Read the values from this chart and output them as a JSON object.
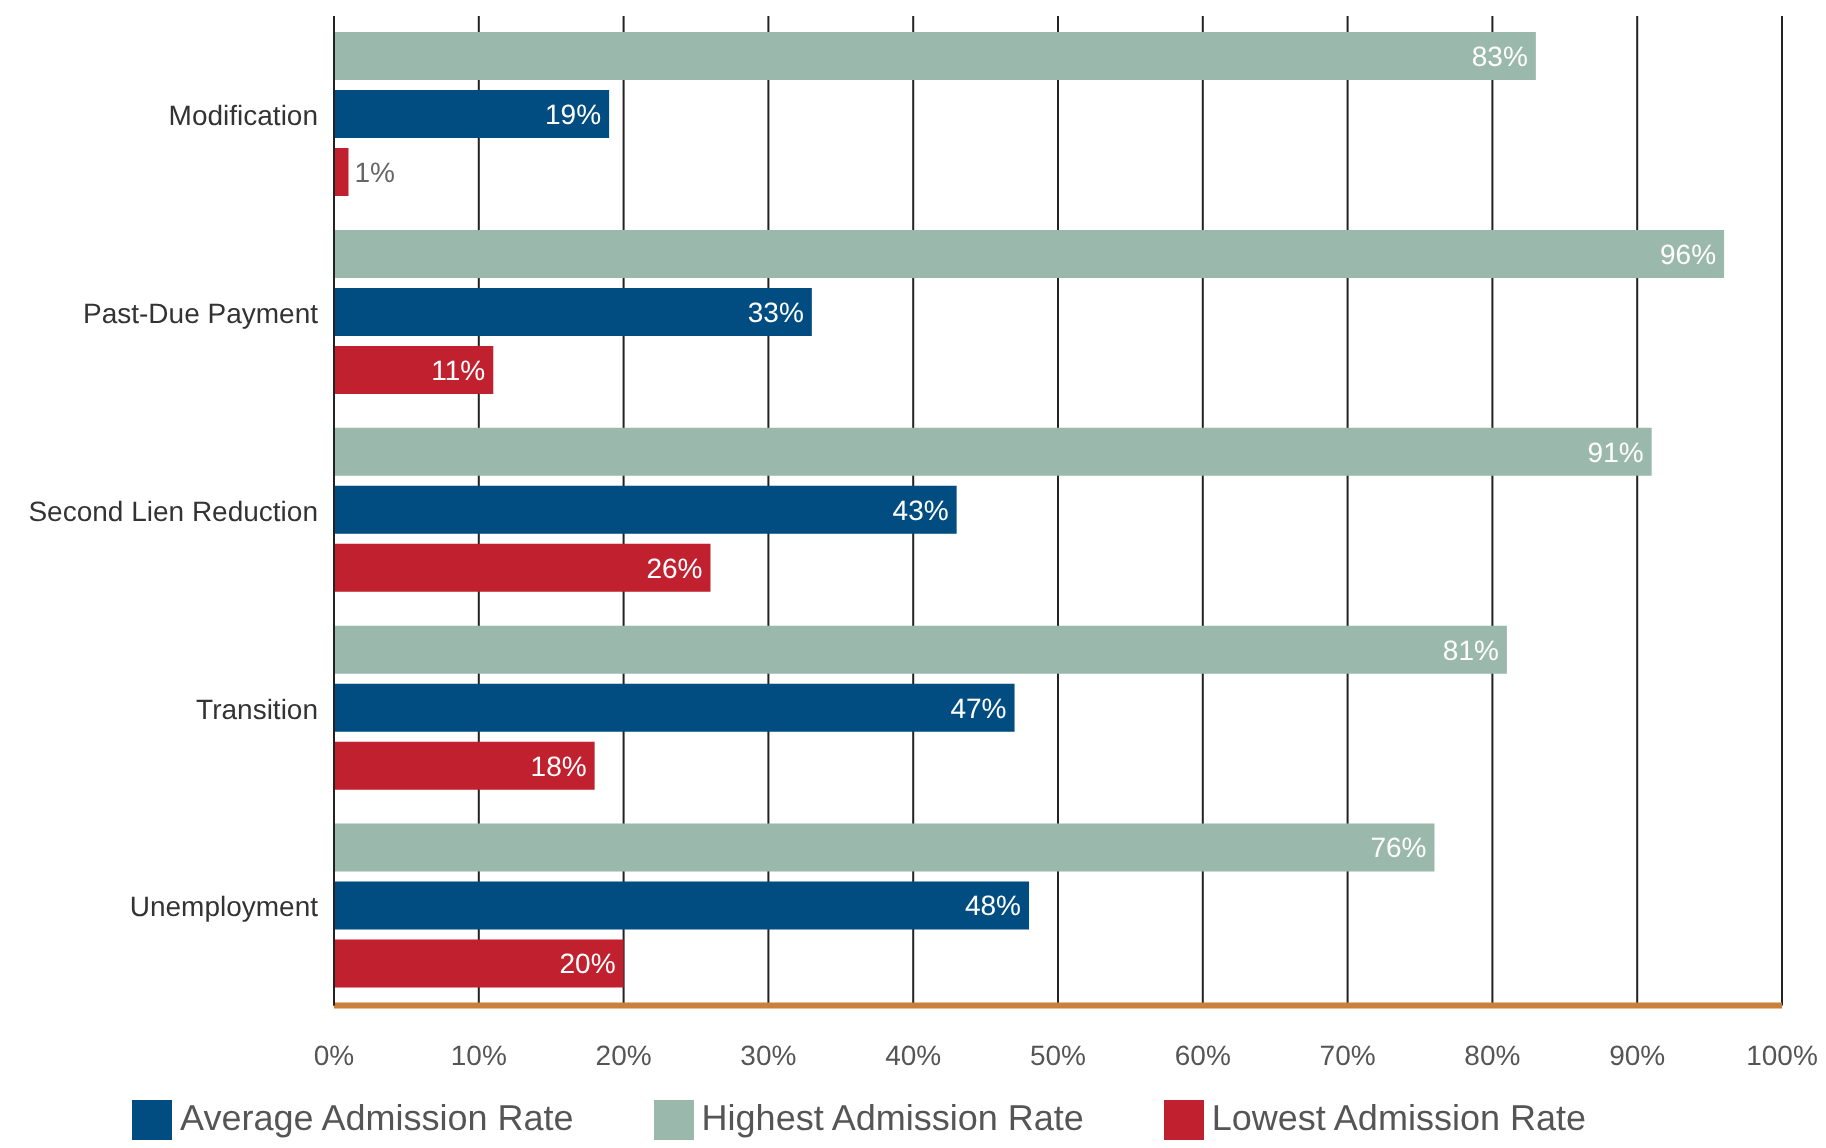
{
  "chart_data": {
    "type": "bar",
    "orientation": "horizontal",
    "categories": [
      "Modification",
      "Past-Due Payment",
      "Second Lien Reduction",
      "Transition",
      "Unemployment"
    ],
    "series": [
      {
        "name": "Highest Admission Rate",
        "color": "#9ab8ab",
        "values": [
          83,
          96,
          91,
          81,
          76
        ],
        "value_labels": [
          "83%",
          "96%",
          "91%",
          "81%",
          "76%"
        ]
      },
      {
        "name": "Average Admission Rate",
        "color": "#014c80",
        "values": [
          19,
          33,
          43,
          47,
          48
        ],
        "value_labels": [
          "19%",
          "33%",
          "43%",
          "47%",
          "48%"
        ]
      },
      {
        "name": "Lowest Admission Rate",
        "color": "#c1202f",
        "values": [
          1,
          11,
          26,
          18,
          20
        ],
        "value_labels": [
          "1%",
          "11%",
          "26%",
          "18%",
          "20%"
        ]
      }
    ],
    "xlim": [
      0,
      100
    ],
    "xticks": [
      {
        "value": 0,
        "label": "0%"
      },
      {
        "value": 10,
        "label": "10%"
      },
      {
        "value": 20,
        "label": "20%"
      },
      {
        "value": 30,
        "label": "30%"
      },
      {
        "value": 40,
        "label": "40%"
      },
      {
        "value": 50,
        "label": "50%"
      },
      {
        "value": 60,
        "label": "60%"
      },
      {
        "value": 70,
        "label": "70%"
      },
      {
        "value": 80,
        "label": "80%"
      },
      {
        "value": 90,
        "label": "90%"
      },
      {
        "value": 100,
        "label": "100%"
      }
    ],
    "grid": "x",
    "legend": "bottom"
  }
}
